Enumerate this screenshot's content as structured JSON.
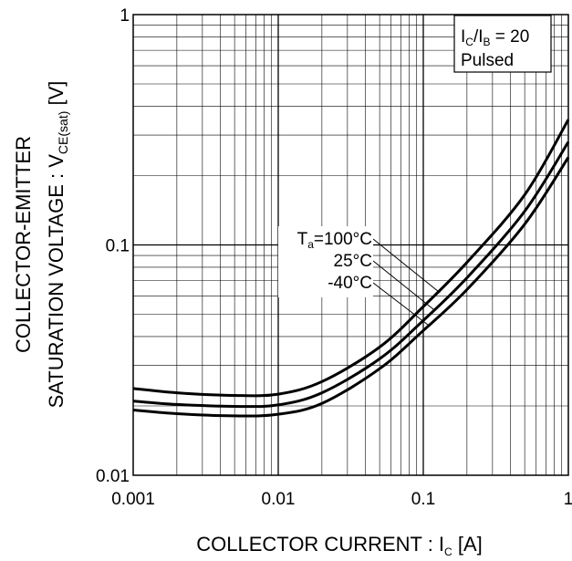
{
  "chart_data": {
    "type": "line",
    "title": "",
    "xscale": "log",
    "yscale": "log",
    "xlim": [
      0.001,
      1
    ],
    "ylim": [
      0.01,
      1
    ],
    "grid": true,
    "x_ticks": [
      {
        "value": 0.001,
        "label": "0.001"
      },
      {
        "value": 0.01,
        "label": "0.01"
      },
      {
        "value": 0.1,
        "label": "0.1"
      },
      {
        "value": 1,
        "label": "1"
      }
    ],
    "y_ticks": [
      {
        "value": 0.01,
        "label": "0.01"
      },
      {
        "value": 0.1,
        "label": "0.1"
      },
      {
        "value": 1,
        "label": "1"
      }
    ],
    "xlabel": {
      "main": "COLLECTOR CURRENT : I",
      "sub": "C",
      "unit": " [A]"
    },
    "ylabel": {
      "line1": "COLLECTOR-EMITTER",
      "line2_main": "SATURATION VOLTAGE : V",
      "line2_sub": "CE(sat)",
      "line2_unit": " [V]"
    },
    "condition_box": {
      "line1_a": "I",
      "line1_a_sub": "C",
      "line1_b": "/I",
      "line1_b_sub": "B",
      "line1_c": " = 20",
      "line2": "Pulsed"
    },
    "series": [
      {
        "label_prefix": "T",
        "label_sub": "a",
        "label": "=100°C",
        "x": [
          0.001,
          0.002,
          0.005,
          0.01,
          0.02,
          0.05,
          0.1,
          0.2,
          0.5,
          1.0
        ],
        "y": [
          0.0238,
          0.0228,
          0.0222,
          0.0225,
          0.0255,
          0.036,
          0.054,
          0.084,
          0.165,
          0.35
        ]
      },
      {
        "label": "25°C",
        "x": [
          0.001,
          0.002,
          0.005,
          0.01,
          0.02,
          0.05,
          0.1,
          0.2,
          0.5,
          1.0
        ],
        "y": [
          0.021,
          0.0203,
          0.0199,
          0.0202,
          0.0228,
          0.032,
          0.047,
          0.072,
          0.14,
          0.28
        ]
      },
      {
        "label": "-40°C",
        "x": [
          0.001,
          0.002,
          0.005,
          0.01,
          0.02,
          0.05,
          0.1,
          0.2,
          0.5,
          1.0
        ],
        "y": [
          0.0192,
          0.0185,
          0.0181,
          0.0184,
          0.0205,
          0.029,
          0.0425,
          0.064,
          0.123,
          0.24
        ]
      }
    ]
  }
}
